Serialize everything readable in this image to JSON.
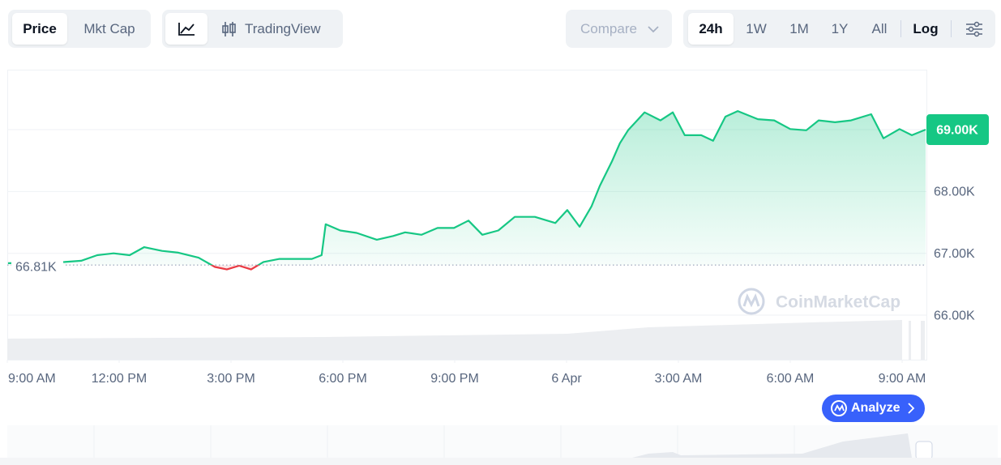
{
  "toolbar": {
    "price": "Price",
    "mkt_cap": "Mkt Cap",
    "tradingview": "TradingView",
    "compare": "Compare",
    "ranges": [
      "24h",
      "1W",
      "1M",
      "1Y",
      "All"
    ],
    "log": "Log"
  },
  "watermark": "CoinMarketCap",
  "analyze": "Analyze",
  "chart_data": {
    "type": "line",
    "x": [
      0.02,
      1.54,
      1.98,
      2.41,
      2.85,
      3.28,
      3.67,
      4.15,
      4.59,
      5.13,
      5.57,
      5.89,
      6.22,
      6.54,
      6.87,
      7.3,
      7.74,
      8.17,
      8.43,
      8.54,
      8.93,
      9.37,
      9.91,
      10.35,
      10.67,
      11.11,
      11.54,
      11.98,
      12.37,
      12.74,
      13.17,
      13.61,
      14.15,
      14.7,
      15.02,
      15.35,
      15.67,
      15.89,
      16.22,
      16.43,
      16.65,
      17.09,
      17.52,
      17.85,
      18.17,
      18.61,
      18.93,
      19.26,
      19.59,
      20.13,
      20.57,
      21.0,
      21.43,
      21.76,
      22.2,
      22.63,
      23.17,
      23.5,
      23.93,
      24.26,
      24.63
    ],
    "series": [
      {
        "name": "Price",
        "color": "#16c784",
        "values": [
          66840,
          66860,
          66880,
          66970,
          67000,
          66970,
          67100,
          67040,
          67010,
          66930,
          66780,
          66740,
          66800,
          66740,
          66860,
          66910,
          66910,
          66910,
          66970,
          67470,
          67370,
          67330,
          67220,
          67280,
          67340,
          67300,
          67410,
          67410,
          67530,
          67300,
          67370,
          67590,
          67590,
          67490,
          67700,
          67430,
          67760,
          68090,
          68490,
          68780,
          68990,
          69280,
          69150,
          69280,
          68910,
          68910,
          68820,
          69210,
          69300,
          69170,
          69150,
          69010,
          68990,
          69150,
          69120,
          69150,
          69250,
          68860,
          69010,
          68910,
          69000
        ]
      }
    ],
    "below_color": "#ea3943",
    "open_price": 66810,
    "open_price_label": "66.81K",
    "last_price": 69000,
    "last_price_label": "69.00K",
    "xlim": [
      0,
      24.63
    ],
    "xticks": [
      {
        "value": 0,
        "label": "9:00 AM"
      },
      {
        "value": 3,
        "label": "12:00 PM"
      },
      {
        "value": 6,
        "label": "3:00 PM"
      },
      {
        "value": 9,
        "label": "6:00 PM"
      },
      {
        "value": 12,
        "label": "9:00 PM"
      },
      {
        "value": 15,
        "label": "6 Apr"
      },
      {
        "value": 18,
        "label": "3:00 AM"
      },
      {
        "value": 21,
        "label": "6:00 AM"
      },
      {
        "value": 24,
        "label": "9:00 AM"
      }
    ],
    "ylim": [
      65280,
      69970
    ],
    "yticks": [
      {
        "value": 66000,
        "label": "66.00K"
      },
      {
        "value": 67000,
        "label": "67.00K"
      },
      {
        "value": 68000,
        "label": "68.00K"
      },
      {
        "value": 69000,
        "label": "69.00K"
      }
    ],
    "grid": true
  }
}
